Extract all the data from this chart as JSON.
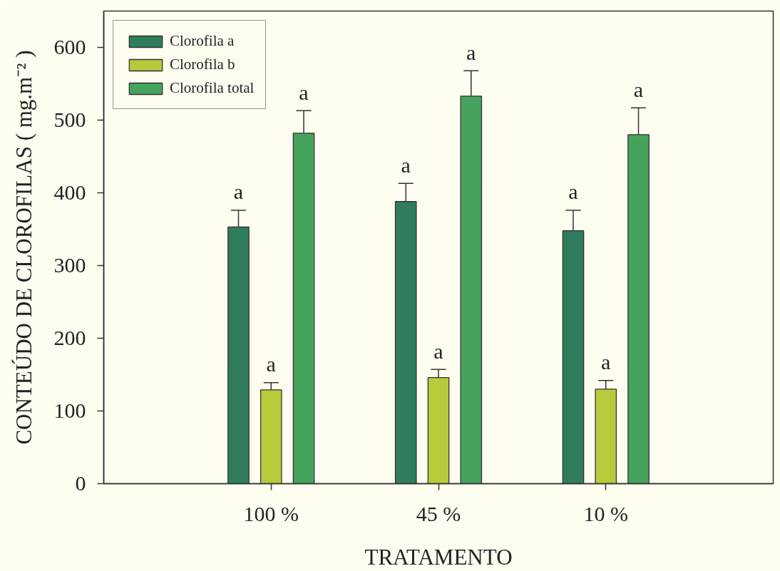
{
  "chart_data": {
    "type": "bar",
    "categories": [
      "100 %",
      "45 %",
      "10 %"
    ],
    "xlabel": "TRATAMENTO",
    "ylabel": "CONTEÚDO DE CLOROFILAS ( mg.m⁻² )",
    "ylim": [
      0,
      650
    ],
    "yticks": [
      0,
      100,
      200,
      300,
      400,
      500,
      600
    ],
    "grid": false,
    "legend": "top left",
    "series": [
      {
        "name": "Clorofila a",
        "color": "#2f7d5c",
        "values": [
          353,
          388,
          348
        ],
        "errors": [
          [
            353,
            376
          ],
          [
            388,
            413
          ],
          [
            348,
            376
          ]
        ],
        "value_labels": [
          "a",
          "a",
          "a"
        ]
      },
      {
        "name": "Clorofila b",
        "color": "#b9c93c",
        "values": [
          129,
          146,
          130
        ],
        "errors": [
          [
            129,
            139
          ],
          [
            146,
            157
          ],
          [
            130,
            142
          ]
        ],
        "value_labels": [
          "a",
          "a",
          "a"
        ]
      },
      {
        "name": "Clorofila total",
        "color": "#46a35e",
        "values": [
          482,
          533,
          480
        ],
        "errors": [
          [
            482,
            513
          ],
          [
            533,
            568
          ],
          [
            480,
            517
          ]
        ],
        "value_labels": [
          "a",
          "a",
          "a"
        ]
      }
    ]
  }
}
